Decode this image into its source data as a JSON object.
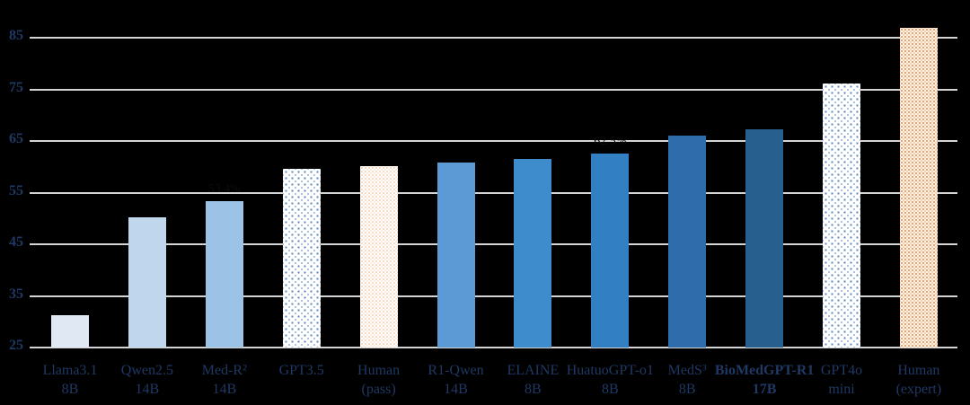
{
  "figure": {
    "background_color": "#000000",
    "axis_text_color": "#1f3864",
    "gridline_color": "#d4d4d4",
    "annotation_text_color": "#0c0c0c"
  },
  "chart_data": {
    "type": "bar",
    "title": "",
    "xlabel": "",
    "ylabel": "",
    "ylim": [
      25,
      88
    ],
    "yticks": [
      25,
      35,
      45,
      55,
      65,
      75,
      85
    ],
    "grid": true,
    "legend": false,
    "categories": [
      "Llama3.1 8B",
      "Qwen2.5 14B",
      "Med-R² 14B",
      "GPT3.5",
      "Human (pass)",
      "R1-Qwen 14B",
      "ELAINE 8B",
      "HuatuoGPT-o1 8B",
      "MedS³ 8B",
      "BioMedGPT-R1 17B",
      "GPT4o mini",
      "Human (expert)"
    ],
    "values": [
      31.3,
      50.2,
      53.4,
      59.7,
      60.1,
      60.8,
      61.5,
      62.5,
      66.0,
      67.2,
      76.1,
      87.0
    ],
    "bars": [
      {
        "name": "Llama3.1",
        "size": "8B",
        "value": 31.3,
        "fill": "#dfe8f3",
        "pattern": null,
        "bold": false
      },
      {
        "name": "Qwen2.5",
        "size": "14B",
        "value": 50.2,
        "fill": "#c0d6ec",
        "pattern": null,
        "bold": false
      },
      {
        "name": "Med-R²",
        "size": "14B",
        "value": 53.4,
        "fill": "#9cc3e6",
        "pattern": null,
        "bold": false
      },
      {
        "name": "GPT3.5",
        "size": "",
        "value": 59.7,
        "fill": null,
        "pattern": "blue-dots",
        "bold": false
      },
      {
        "name": "Human",
        "size": "(pass)",
        "value": 60.1,
        "fill": null,
        "pattern": "orange-light",
        "bold": false
      },
      {
        "name": "R1-Qwen",
        "size": "14B",
        "value": 60.8,
        "fill": "#5b9ad4",
        "pattern": null,
        "bold": false
      },
      {
        "name": "ELAINE",
        "size": "8B",
        "value": 61.5,
        "fill": "#3f8ccd",
        "pattern": null,
        "bold": false
      },
      {
        "name": "HuatuoGPT-o1",
        "size": "8B",
        "value": 62.5,
        "fill": "#327fc3",
        "pattern": null,
        "bold": false
      },
      {
        "name": "MedS³",
        "size": "8B",
        "value": 66.0,
        "fill": "#2e6cac",
        "pattern": null,
        "bold": false
      },
      {
        "name": "BioMedGPT-R1",
        "size": "17B",
        "value": 67.2,
        "fill": "#27608f",
        "pattern": null,
        "bold": true
      },
      {
        "name": "GPT4o",
        "size": "mini",
        "value": 76.1,
        "fill": null,
        "pattern": "blue-dots",
        "bold": false
      },
      {
        "name": "Human",
        "size": "(expert)",
        "value": 87.0,
        "fill": null,
        "pattern": "orange-dense",
        "bold": false
      }
    ],
    "annotations": [
      {
        "bar_index": 2,
        "text": "53.4%"
      },
      {
        "bar_index": 7,
        "text": "62.5%"
      }
    ]
  }
}
